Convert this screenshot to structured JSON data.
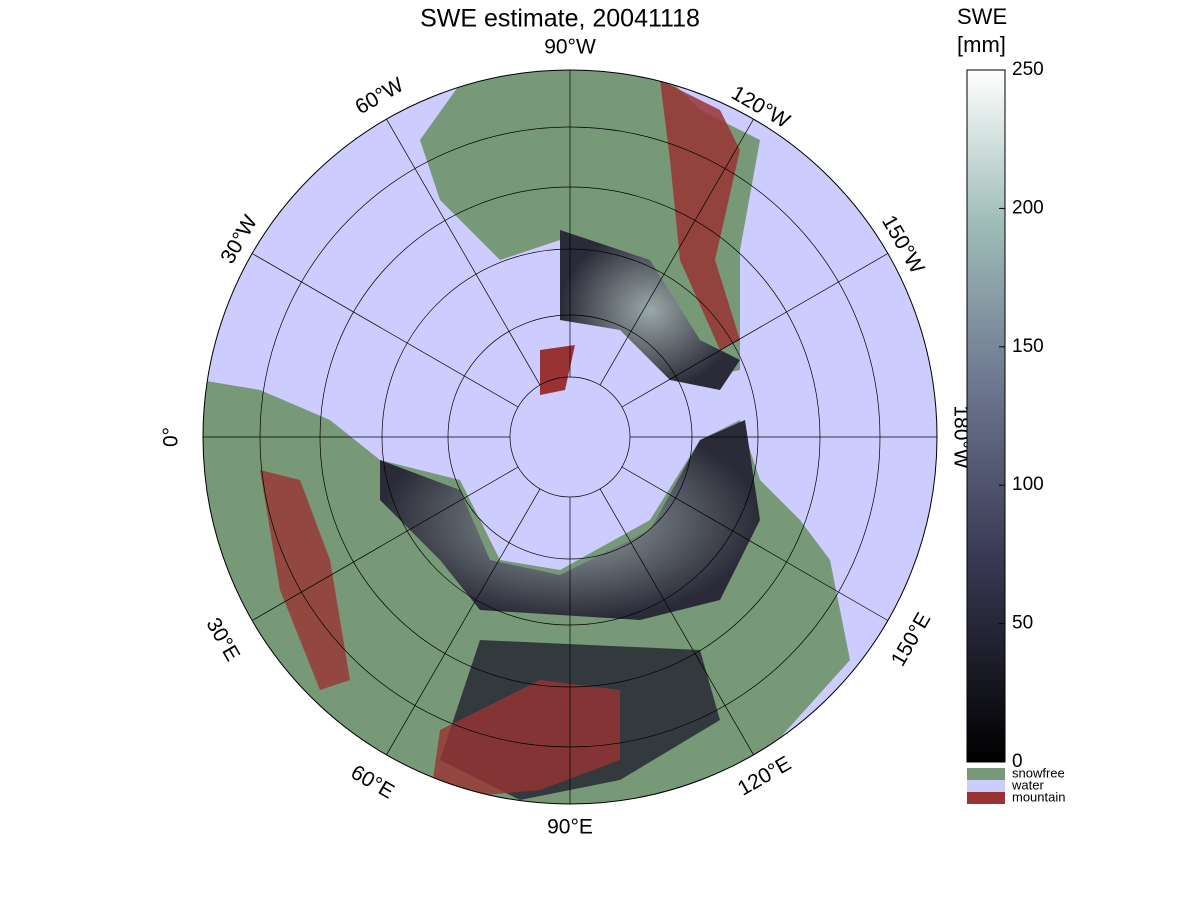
{
  "title": "SWE estimate, 20041118",
  "map": {
    "meridian_labels": [
      "90°W",
      "120°W",
      "150°W",
      "180°W",
      "150°E",
      "120°E",
      "90°E",
      "60°E",
      "30°E",
      "0°",
      "30°W",
      "60°W"
    ]
  },
  "colorbar": {
    "label": [
      "SWE",
      "[mm]"
    ],
    "range": [
      0,
      250
    ],
    "ticks": [
      0,
      50,
      100,
      150,
      200,
      250
    ]
  },
  "legend": [
    {
      "label": "snowfree",
      "color": "#779977"
    },
    {
      "label": "water",
      "color": "#ccccff"
    },
    {
      "label": "mountain",
      "color": "#993333"
    }
  ]
}
